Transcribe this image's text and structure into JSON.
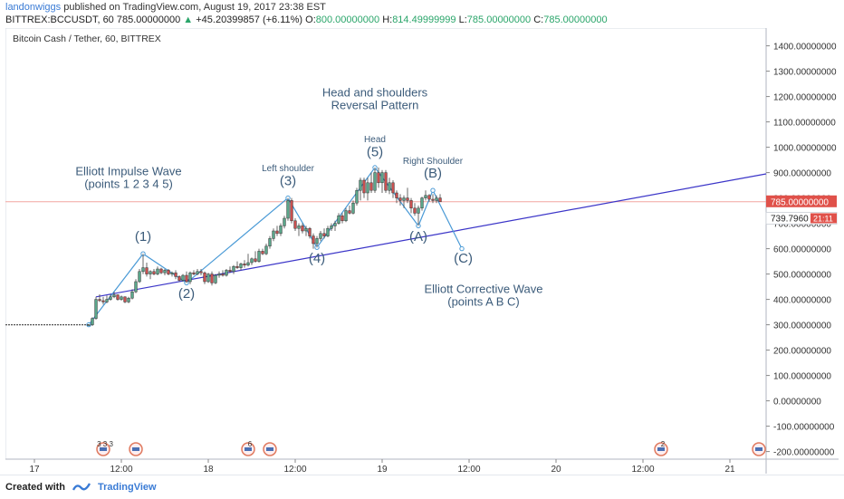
{
  "header": {
    "user": "landonwiggs",
    "published": "published on TradingView.com, August 19, 2017 23:38 EST",
    "symbol_line": "BITTREX:BCCUSDT, 60  785.00000000",
    "change": "+45.20399857 (+6.11%)",
    "o_label": "O:",
    "o_value": "800.00000000",
    "h_label": "H:",
    "h_value": "814.49999999",
    "l_label": "L:",
    "l_value": "785.00000000",
    "c_label": "C:",
    "c_value": "785.00000000"
  },
  "chart_title": "Bitcoin Cash / Tether, 60, BITTREX",
  "footer": {
    "created_with": "Created with",
    "brand": "TradingView"
  },
  "colors": {
    "up": "#5aa68a",
    "down": "#c94f4f",
    "trend": "#3b35c8",
    "wave": "#4a9ad6",
    "annotation": "#3b5b7a",
    "price_tag": "#e0514a"
  },
  "chart_data": {
    "type": "candlestick",
    "y_ticks": [
      "1400.00000000",
      "1300.00000000",
      "1200.00000000",
      "1100.00000000",
      "1000.00000000",
      "900.00000000",
      "800.00000000",
      "700.00000000",
      "600.00000000",
      "500.00000000",
      "400.00000000",
      "300.00000000",
      "200.00000000",
      "100.00000000",
      "0.00000000",
      "-100.00000000",
      "-200.00000000"
    ],
    "ylim": [
      -230,
      1470
    ],
    "x_ticks": [
      {
        "label": "17",
        "t": 0
      },
      {
        "label": "12:00",
        "t": 12
      },
      {
        "label": "18",
        "t": 24
      },
      {
        "label": "12:00",
        "t": 36
      },
      {
        "label": "19",
        "t": 48
      },
      {
        "label": "12:00",
        "t": 60
      },
      {
        "label": "20",
        "t": 72
      },
      {
        "label": "12:00",
        "t": 84
      },
      {
        "label": "21",
        "t": 96
      }
    ],
    "xlim": [
      -4,
      101
    ],
    "last_price": "785.00000000",
    "secondary_price": "739.7960",
    "countdown": "21:11",
    "candles": [
      {
        "t": 7.5,
        "o": 300,
        "h": 302,
        "l": 298,
        "c": 300
      },
      {
        "t": 8,
        "o": 300,
        "h": 330,
        "l": 295,
        "c": 325
      },
      {
        "t": 8.5,
        "o": 325,
        "h": 410,
        "l": 320,
        "c": 400
      },
      {
        "t": 9,
        "o": 400,
        "h": 420,
        "l": 390,
        "c": 395
      },
      {
        "t": 9.5,
        "o": 395,
        "h": 410,
        "l": 380,
        "c": 390
      },
      {
        "t": 10,
        "o": 390,
        "h": 415,
        "l": 385,
        "c": 400
      },
      {
        "t": 10.5,
        "o": 400,
        "h": 420,
        "l": 395,
        "c": 410
      },
      {
        "t": 11,
        "o": 410,
        "h": 430,
        "l": 405,
        "c": 418
      },
      {
        "t": 11.5,
        "o": 418,
        "h": 420,
        "l": 395,
        "c": 400
      },
      {
        "t": 12,
        "o": 400,
        "h": 415,
        "l": 395,
        "c": 410
      },
      {
        "t": 12.5,
        "o": 410,
        "h": 412,
        "l": 385,
        "c": 390
      },
      {
        "t": 13,
        "o": 390,
        "h": 410,
        "l": 385,
        "c": 405
      },
      {
        "t": 13.5,
        "o": 405,
        "h": 440,
        "l": 400,
        "c": 430
      },
      {
        "t": 14,
        "o": 430,
        "h": 480,
        "l": 425,
        "c": 470
      },
      {
        "t": 14.5,
        "o": 470,
        "h": 520,
        "l": 465,
        "c": 510
      },
      {
        "t": 15,
        "o": 510,
        "h": 580,
        "l": 500,
        "c": 525
      },
      {
        "t": 15.5,
        "o": 525,
        "h": 545,
        "l": 490,
        "c": 500
      },
      {
        "t": 16,
        "o": 500,
        "h": 515,
        "l": 480,
        "c": 510
      },
      {
        "t": 16.5,
        "o": 510,
        "h": 520,
        "l": 495,
        "c": 500
      },
      {
        "t": 17,
        "o": 500,
        "h": 530,
        "l": 495,
        "c": 520
      },
      {
        "t": 17.5,
        "o": 520,
        "h": 525,
        "l": 500,
        "c": 505
      },
      {
        "t": 18,
        "o": 505,
        "h": 520,
        "l": 495,
        "c": 515
      },
      {
        "t": 18.5,
        "o": 515,
        "h": 520,
        "l": 495,
        "c": 500
      },
      {
        "t": 19,
        "o": 500,
        "h": 510,
        "l": 490,
        "c": 505
      },
      {
        "t": 19.5,
        "o": 505,
        "h": 515,
        "l": 480,
        "c": 490
      },
      {
        "t": 20,
        "o": 490,
        "h": 495,
        "l": 470,
        "c": 475
      },
      {
        "t": 20.5,
        "o": 475,
        "h": 500,
        "l": 470,
        "c": 495
      },
      {
        "t": 21,
        "o": 495,
        "h": 510,
        "l": 465,
        "c": 470
      },
      {
        "t": 21.5,
        "o": 470,
        "h": 510,
        "l": 460,
        "c": 505
      },
      {
        "t": 22,
        "o": 505,
        "h": 515,
        "l": 495,
        "c": 500
      },
      {
        "t": 22.5,
        "o": 500,
        "h": 520,
        "l": 495,
        "c": 510
      },
      {
        "t": 23,
        "o": 510,
        "h": 520,
        "l": 495,
        "c": 505
      },
      {
        "t": 23.5,
        "o": 505,
        "h": 510,
        "l": 460,
        "c": 470
      },
      {
        "t": 24,
        "o": 470,
        "h": 505,
        "l": 465,
        "c": 500
      },
      {
        "t": 24.5,
        "o": 500,
        "h": 510,
        "l": 455,
        "c": 465
      },
      {
        "t": 25,
        "o": 465,
        "h": 500,
        "l": 460,
        "c": 495
      },
      {
        "t": 25.5,
        "o": 495,
        "h": 510,
        "l": 485,
        "c": 500
      },
      {
        "t": 26,
        "o": 500,
        "h": 515,
        "l": 490,
        "c": 495
      },
      {
        "t": 26.5,
        "o": 495,
        "h": 520,
        "l": 490,
        "c": 515
      },
      {
        "t": 27,
        "o": 515,
        "h": 530,
        "l": 505,
        "c": 510
      },
      {
        "t": 27.5,
        "o": 510,
        "h": 535,
        "l": 500,
        "c": 530
      },
      {
        "t": 28,
        "o": 530,
        "h": 550,
        "l": 520,
        "c": 525
      },
      {
        "t": 28.5,
        "o": 525,
        "h": 545,
        "l": 515,
        "c": 540
      },
      {
        "t": 29,
        "o": 540,
        "h": 555,
        "l": 525,
        "c": 535
      },
      {
        "t": 29.5,
        "o": 535,
        "h": 580,
        "l": 530,
        "c": 545
      },
      {
        "t": 30,
        "o": 545,
        "h": 565,
        "l": 535,
        "c": 560
      },
      {
        "t": 30.5,
        "o": 560,
        "h": 590,
        "l": 545,
        "c": 550
      },
      {
        "t": 31,
        "o": 550,
        "h": 600,
        "l": 545,
        "c": 590
      },
      {
        "t": 31.5,
        "o": 590,
        "h": 600,
        "l": 575,
        "c": 580
      },
      {
        "t": 32,
        "o": 580,
        "h": 620,
        "l": 575,
        "c": 610
      },
      {
        "t": 32.5,
        "o": 610,
        "h": 650,
        "l": 600,
        "c": 640
      },
      {
        "t": 33,
        "o": 640,
        "h": 680,
        "l": 630,
        "c": 670
      },
      {
        "t": 33.5,
        "o": 670,
        "h": 690,
        "l": 650,
        "c": 660
      },
      {
        "t": 34,
        "o": 660,
        "h": 700,
        "l": 650,
        "c": 690
      },
      {
        "t": 34.5,
        "o": 690,
        "h": 730,
        "l": 680,
        "c": 720
      },
      {
        "t": 35,
        "o": 720,
        "h": 800,
        "l": 710,
        "c": 790
      },
      {
        "t": 35.5,
        "o": 790,
        "h": 800,
        "l": 700,
        "c": 710
      },
      {
        "t": 36,
        "o": 710,
        "h": 720,
        "l": 670,
        "c": 680
      },
      {
        "t": 36.5,
        "o": 680,
        "h": 700,
        "l": 650,
        "c": 690
      },
      {
        "t": 37,
        "o": 690,
        "h": 700,
        "l": 660,
        "c": 670
      },
      {
        "t": 37.5,
        "o": 670,
        "h": 690,
        "l": 650,
        "c": 680
      },
      {
        "t": 38,
        "o": 680,
        "h": 685,
        "l": 640,
        "c": 650
      },
      {
        "t": 38.5,
        "o": 650,
        "h": 660,
        "l": 600,
        "c": 620
      },
      {
        "t": 39,
        "o": 620,
        "h": 650,
        "l": 605,
        "c": 640
      },
      {
        "t": 39.5,
        "o": 640,
        "h": 670,
        "l": 630,
        "c": 660
      },
      {
        "t": 40,
        "o": 660,
        "h": 680,
        "l": 640,
        "c": 650
      },
      {
        "t": 40.5,
        "o": 650,
        "h": 690,
        "l": 645,
        "c": 680
      },
      {
        "t": 41,
        "o": 680,
        "h": 700,
        "l": 670,
        "c": 690
      },
      {
        "t": 41.5,
        "o": 690,
        "h": 710,
        "l": 670,
        "c": 700
      },
      {
        "t": 42,
        "o": 700,
        "h": 740,
        "l": 695,
        "c": 730
      },
      {
        "t": 42.5,
        "o": 730,
        "h": 740,
        "l": 700,
        "c": 710
      },
      {
        "t": 43,
        "o": 710,
        "h": 760,
        "l": 705,
        "c": 750
      },
      {
        "t": 43.5,
        "o": 750,
        "h": 770,
        "l": 735,
        "c": 740
      },
      {
        "t": 44,
        "o": 740,
        "h": 790,
        "l": 735,
        "c": 780
      },
      {
        "t": 44.5,
        "o": 780,
        "h": 840,
        "l": 770,
        "c": 830
      },
      {
        "t": 45,
        "o": 830,
        "h": 880,
        "l": 790,
        "c": 870
      },
      {
        "t": 45.5,
        "o": 870,
        "h": 880,
        "l": 800,
        "c": 820
      },
      {
        "t": 46,
        "o": 820,
        "h": 880,
        "l": 790,
        "c": 860
      },
      {
        "t": 46.5,
        "o": 860,
        "h": 900,
        "l": 820,
        "c": 830
      },
      {
        "t": 47,
        "o": 830,
        "h": 920,
        "l": 820,
        "c": 900
      },
      {
        "t": 47.5,
        "o": 900,
        "h": 920,
        "l": 840,
        "c": 860
      },
      {
        "t": 48,
        "o": 860,
        "h": 910,
        "l": 820,
        "c": 900
      },
      {
        "t": 48.5,
        "o": 900,
        "h": 910,
        "l": 820,
        "c": 830
      },
      {
        "t": 49,
        "o": 830,
        "h": 880,
        "l": 815,
        "c": 860
      },
      {
        "t": 49.5,
        "o": 860,
        "h": 870,
        "l": 800,
        "c": 820
      },
      {
        "t": 50,
        "o": 820,
        "h": 830,
        "l": 780,
        "c": 800
      },
      {
        "t": 50.5,
        "o": 800,
        "h": 815,
        "l": 770,
        "c": 790
      },
      {
        "t": 51,
        "o": 790,
        "h": 810,
        "l": 760,
        "c": 800
      },
      {
        "t": 51.5,
        "o": 800,
        "h": 840,
        "l": 780,
        "c": 790
      },
      {
        "t": 52,
        "o": 790,
        "h": 800,
        "l": 740,
        "c": 760
      },
      {
        "t": 52.5,
        "o": 760,
        "h": 780,
        "l": 730,
        "c": 740
      },
      {
        "t": 53,
        "o": 740,
        "h": 770,
        "l": 690,
        "c": 760
      },
      {
        "t": 53.5,
        "o": 760,
        "h": 805,
        "l": 750,
        "c": 800
      },
      {
        "t": 54,
        "o": 800,
        "h": 830,
        "l": 790,
        "c": 810
      },
      {
        "t": 54.5,
        "o": 810,
        "h": 815,
        "l": 785,
        "c": 795
      },
      {
        "t": 55,
        "o": 795,
        "h": 815,
        "l": 780,
        "c": 790
      },
      {
        "t": 55.5,
        "o": 790,
        "h": 810,
        "l": 780,
        "c": 800
      },
      {
        "t": 56,
        "o": 800,
        "h": 815,
        "l": 785,
        "c": 785
      }
    ],
    "trendline": [
      {
        "t": 8.5,
        "v": 410
      },
      {
        "t": 101,
        "v": 895
      }
    ],
    "impulse_wave": [
      {
        "t": 7.5,
        "v": 300
      },
      {
        "t": 15,
        "v": 580
      },
      {
        "t": 21,
        "v": 465
      },
      {
        "t": 35,
        "v": 800
      },
      {
        "t": 39,
        "v": 605
      },
      {
        "t": 47,
        "v": 920
      },
      {
        "t": 53,
        "v": 690
      },
      {
        "t": 55,
        "v": 830
      },
      {
        "t": 59,
        "v": 600
      }
    ],
    "annotations": [
      {
        "text": "(1)",
        "t": 15,
        "v": 630,
        "size": 15
      },
      {
        "text": "(2)",
        "t": 21,
        "v": 405,
        "size": 15
      },
      {
        "text": "(3)",
        "t": 35,
        "v": 850,
        "size": 15
      },
      {
        "text": "(4)",
        "t": 39,
        "v": 545,
        "size": 15
      },
      {
        "text": "(5)",
        "t": 47,
        "v": 965,
        "size": 15
      },
      {
        "text": "(A)",
        "t": 53,
        "v": 630,
        "size": 15
      },
      {
        "text": "(B)",
        "t": 55,
        "v": 880,
        "size": 15
      },
      {
        "text": "(C)",
        "t": 59.2,
        "v": 545,
        "size": 15
      },
      {
        "text": "Left shoulder",
        "t": 35,
        "v": 905,
        "size": 10
      },
      {
        "text": "Head",
        "t": 47,
        "v": 1020,
        "size": 10
      },
      {
        "text": "Right Shoulder",
        "t": 55,
        "v": 935,
        "size": 10
      },
      {
        "text": "Head and shoulders",
        "t": 47,
        "v": 1200,
        "size": 13
      },
      {
        "text": "Reversal Pattern",
        "t": 47,
        "v": 1150,
        "size": 13
      },
      {
        "text": "Elliott Impulse Wave",
        "t": 13,
        "v": 890,
        "size": 13
      },
      {
        "text": "(points 1 2 3 4 5)",
        "t": 13,
        "v": 840,
        "size": 13
      },
      {
        "text": "Elliott Corrective Wave",
        "t": 62,
        "v": 425,
        "size": 13
      },
      {
        "text": "(points A B C)",
        "t": 62,
        "v": 375,
        "size": 13
      }
    ],
    "event_markers": [
      {
        "label": "3 3 3",
        "t": 9.5
      },
      {
        "label": "",
        "t": 14
      },
      {
        "label": "6",
        "t": 29.5
      },
      {
        "label": "",
        "t": 32.5
      },
      {
        "label": "2",
        "t": 86.5
      },
      {
        "label": "",
        "t": 100
      }
    ]
  }
}
